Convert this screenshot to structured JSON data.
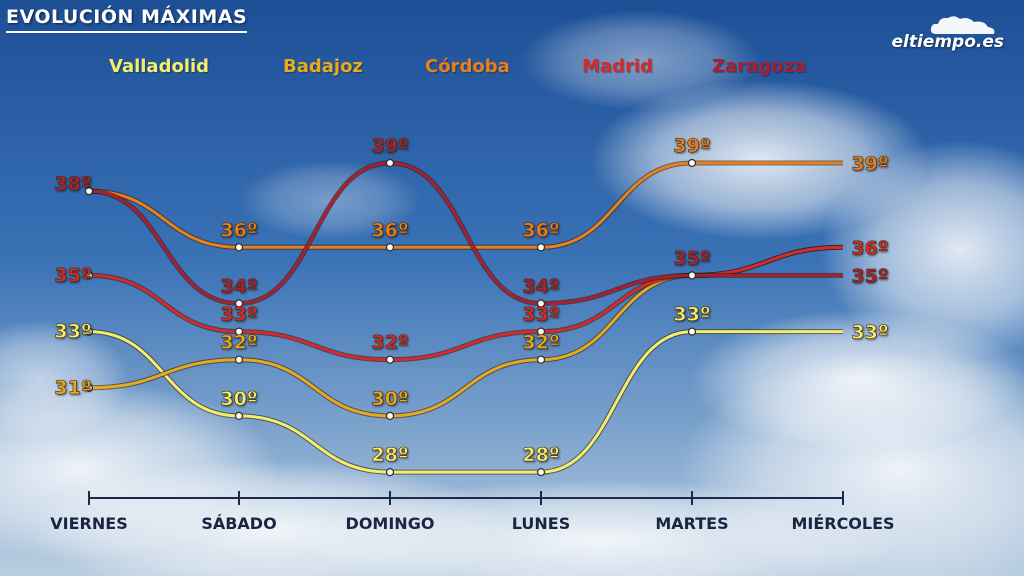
{
  "header": {
    "title": "EVOLUCIÓN MÁXIMAS"
  },
  "logo": {
    "text": "eltiempo.es",
    "icon": "cloud-icon"
  },
  "chart_data": {
    "type": "line",
    "categories": [
      "VIERNES",
      "SÁBADO",
      "DOMINGO",
      "LUNES",
      "MARTES",
      "MIÉRCOLES"
    ],
    "ylabel": "",
    "xlabel": "",
    "unit": "º",
    "legend_position": "top",
    "grid": false,
    "series": [
      {
        "name": "Valladolid",
        "color": "#f3ef6a",
        "values": [
          33,
          30,
          28,
          28,
          33,
          33
        ]
      },
      {
        "name": "Badajoz",
        "color": "#e6aa1e",
        "values": [
          31,
          32,
          30,
          32,
          35,
          36
        ]
      },
      {
        "name": "Córdoba",
        "color": "#e9801a",
        "values": [
          38,
          36,
          36,
          36,
          39,
          39
        ]
      },
      {
        "name": "Madrid",
        "color": "#d42a2a",
        "values": [
          35,
          33,
          32,
          33,
          35,
          36
        ]
      },
      {
        "name": "Zaragoza",
        "color": "#a82030",
        "values": [
          38,
          34,
          39,
          34,
          35,
          35
        ]
      }
    ],
    "data_labels": [
      {
        "series": "Valladolid",
        "labels": [
          "33º",
          "30º",
          "28º",
          "28º",
          "33º",
          "33º"
        ]
      },
      {
        "series": "Badajoz",
        "labels": [
          "31º",
          "32º",
          "30º",
          "32º",
          "",
          ""
        ]
      },
      {
        "series": "Córdoba",
        "labels": [
          "",
          "36º",
          "36º",
          "36º",
          "39º",
          "39º"
        ]
      },
      {
        "series": "Madrid",
        "labels": [
          "35º",
          "33º",
          "32º",
          "33º",
          "",
          "36º"
        ]
      },
      {
        "series": "Zaragoza",
        "labels": [
          "38º",
          "34º",
          "39º",
          "34º",
          "35º",
          "35º"
        ]
      }
    ]
  }
}
